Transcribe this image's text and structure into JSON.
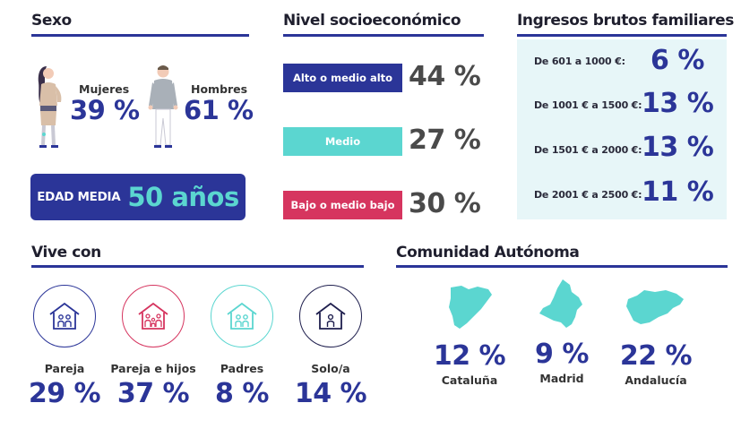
{
  "sexo": {
    "title": "Sexo",
    "mujeres": {
      "label": "Mujeres",
      "value": "39 %"
    },
    "hombres": {
      "label": "Hombres",
      "value": "61 %"
    },
    "edad": {
      "label": "EDAD MEDIA",
      "value": "50 años"
    }
  },
  "nivel": {
    "title": "Nivel socioeconómico",
    "items": [
      {
        "label": "Alto o medio alto",
        "value": "44 %",
        "color": "#2b3598"
      },
      {
        "label": "Medio",
        "value": "27 %",
        "color": "#5bd6d0"
      },
      {
        "label": "Bajo o medio bajo",
        "value": "30 %",
        "color": "#d6355f"
      }
    ]
  },
  "ingresos": {
    "title": "Ingresos brutos familiares",
    "items": [
      {
        "label": "De 601 a 1000 €:",
        "value": "6 %"
      },
      {
        "label": "De 1001 € a 1500 €:",
        "value": "13 %"
      },
      {
        "label": "De 1501 € a 2000 €:",
        "value": "13 %"
      },
      {
        "label": "De 2001 € a 2500 €:",
        "value": "11 %"
      }
    ]
  },
  "vive": {
    "title": "Vive con",
    "items": [
      {
        "label": "Pareja",
        "value": "29 %",
        "color": "#2b3598",
        "icon": "couple-house-icon"
      },
      {
        "label": "Pareja e hijos",
        "value": "37 %",
        "color": "#d6355f",
        "icon": "family-house-icon"
      },
      {
        "label": "Padres",
        "value": "8 %",
        "color": "#5bd6d0",
        "icon": "parents-house-icon"
      },
      {
        "label": "Solo/a",
        "value": "14 %",
        "color": "#1f1f4e",
        "icon": "single-house-icon"
      }
    ]
  },
  "comunidad": {
    "title": "Comunidad Autónoma",
    "items": [
      {
        "label": "Cataluña",
        "value": "12 %",
        "icon": "cataluna-map-icon"
      },
      {
        "label": "Madrid",
        "value": "9 %",
        "icon": "madrid-map-icon"
      },
      {
        "label": "Andalucía",
        "value": "22 %",
        "icon": "andalucia-map-icon"
      }
    ],
    "map_color": "#5bd6d0"
  }
}
